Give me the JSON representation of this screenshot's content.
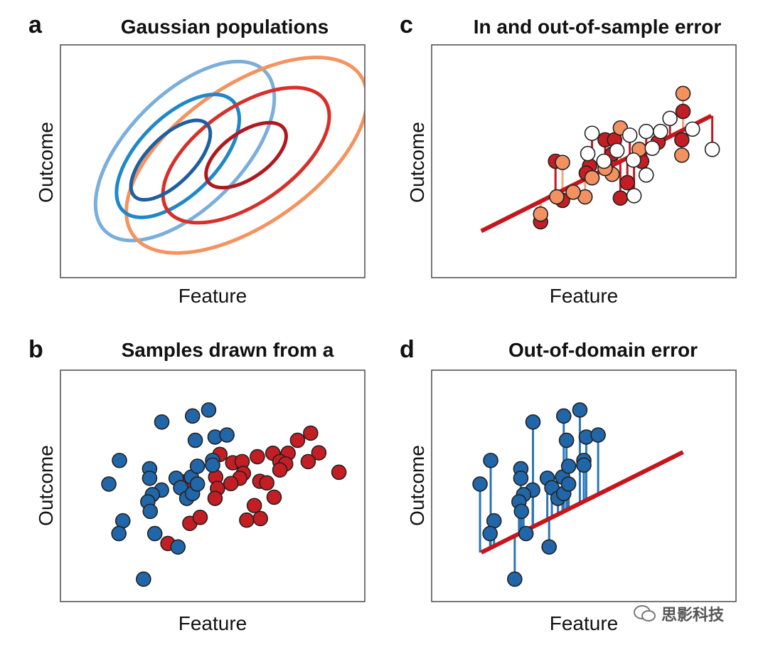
{
  "panels": [
    {
      "letter": "a",
      "title": "Gaussian populations",
      "xlabel": "Feature",
      "ylabel": "Outcome"
    },
    {
      "letter": "b",
      "title": "Samples drawn from a",
      "xlabel": "Feature",
      "ylabel": "Outcome"
    },
    {
      "letter": "c",
      "title": "In and out-of-sample error",
      "xlabel": "Feature",
      "ylabel": "Outcome"
    },
    {
      "letter": "d",
      "title": "Out-of-domain error",
      "xlabel": "Feature",
      "ylabel": "Outcome"
    }
  ],
  "watermark": "思影科技",
  "colors": {
    "blue_point": "#2166a8",
    "red_point": "#c41e24",
    "orange_point": "#f39161",
    "white_point": "#ffffff",
    "fit_line": "#c4161c",
    "stem_blue": "#2a76b8",
    "stem_orange": "#f5a57b",
    "stem_red": "#c4161c"
  },
  "chart_data": [
    {
      "panel": "a",
      "type": "contour",
      "title": "Gaussian populations",
      "xlabel": "Feature",
      "ylabel": "Outcome",
      "xlim": [
        0,
        100
      ],
      "ylim": [
        0,
        100
      ],
      "contours": [
        {
          "population": "blue",
          "level": 3,
          "color": "#7aaedc",
          "center": [
            40.9,
            54.4
          ],
          "major": 37.1,
          "minor": 18.7,
          "angle_deg": 45
        },
        {
          "population": "orange",
          "level": 3,
          "color": "#f4935f",
          "center": [
            61.2,
            52.6
          ],
          "major": 45.6,
          "minor": 22.7,
          "angle_deg": 35
        },
        {
          "population": "blue",
          "level": 2,
          "color": "#1f88c8",
          "center": [
            38.6,
            52.3
          ],
          "major": 25.5,
          "minor": 12.8,
          "angle_deg": 45
        },
        {
          "population": "red",
          "level": 2,
          "color": "#d7302a",
          "center": [
            61.0,
            52.6
          ],
          "major": 31.5,
          "minor": 15.7,
          "angle_deg": 35
        },
        {
          "population": "blue",
          "level": 1,
          "color": "#1f5fa0",
          "center": [
            36.2,
            50.5
          ],
          "major": 16.8,
          "minor": 7.6,
          "angle_deg": 45
        },
        {
          "population": "red",
          "level": 1,
          "color": "#b01820",
          "center": [
            61.0,
            52.6
          ],
          "major": 15.2,
          "minor": 7.5,
          "angle_deg": 35
        }
      ]
    },
    {
      "panel": "b",
      "type": "scatter",
      "title": "Samples drawn from a",
      "xlabel": "Feature",
      "ylabel": "Outcome",
      "xlim": [
        0,
        100
      ],
      "ylim": [
        0,
        100
      ],
      "series": [
        {
          "name": "red",
          "color": "#c41e24",
          "points": [
            [
              52.4,
              63.6
            ],
            [
              56.6,
              60.0
            ],
            [
              59.7,
              60.5
            ],
            [
              60.1,
              55.4
            ],
            [
              58.9,
              53.3
            ],
            [
              56.0,
              51.0
            ],
            [
              51.0,
              53.8
            ],
            [
              51.6,
              48.9
            ],
            [
              50.8,
              44.6
            ],
            [
              64.7,
              62.6
            ],
            [
              69.8,
              64.1
            ],
            [
              74.8,
              64.1
            ],
            [
              72.1,
              60.5
            ],
            [
              74.0,
              59.5
            ],
            [
              72.1,
              56.9
            ],
            [
              77.9,
              69.7
            ],
            [
              82.2,
              72.8
            ],
            [
              84.9,
              64.3
            ],
            [
              81.4,
              60.5
            ],
            [
              91.5,
              55.9
            ],
            [
              65.5,
              52.0
            ],
            [
              67.8,
              51.3
            ],
            [
              70.2,
              45.1
            ],
            [
              63.7,
              41.5
            ],
            [
              61.2,
              35.2
            ],
            [
              65.7,
              35.9
            ],
            [
              42.5,
              33.8
            ],
            [
              45.9,
              36.4
            ],
            [
              35.3,
              25.1
            ],
            [
              41.1,
              51.8
            ]
          ]
        },
        {
          "name": "blue",
          "color": "#2166a8",
          "points": [
            [
              19.4,
              61.0
            ],
            [
              15.9,
              50.8
            ],
            [
              33.3,
              77.6
            ],
            [
              43.4,
              80.2
            ],
            [
              48.7,
              82.8
            ],
            [
              44.3,
              69.7
            ],
            [
              50.8,
              71.1
            ],
            [
              54.7,
              72.0
            ],
            [
              29.3,
              57.4
            ],
            [
              29.3,
              53.3
            ],
            [
              38.0,
              53.3
            ],
            [
              33.2,
              48.2
            ],
            [
              30.2,
              46.2
            ],
            [
              28.7,
              43.1
            ],
            [
              29.5,
              39.0
            ],
            [
              20.5,
              34.9
            ],
            [
              19.2,
              29.4
            ],
            [
              31.0,
              29.4
            ],
            [
              38.6,
              23.6
            ],
            [
              27.3,
              9.7
            ],
            [
              39.5,
              49.2
            ],
            [
              41.5,
              44.6
            ],
            [
              43.4,
              46.7
            ],
            [
              43.0,
              53.8
            ],
            [
              45.0,
              58.5
            ],
            [
              45.0,
              50.8
            ],
            [
              50.0,
              61.0
            ],
            [
              50.0,
              59.0
            ]
          ]
        }
      ]
    },
    {
      "panel": "c",
      "type": "scatter",
      "title": "In and out-of-sample error",
      "xlabel": "Feature",
      "ylabel": "Outcome",
      "xlim": [
        0,
        100
      ],
      "ylim": [
        0,
        100
      ],
      "fit_line": {
        "x": [
          16.3,
          91.9
        ],
        "y": [
          20.0,
          69.5
        ]
      },
      "series": [
        {
          "name": "red",
          "color": "#c41e24",
          "points": [
            [
              82.6,
              71.4
            ],
            [
              82.2,
              59.2
            ],
            [
              40.7,
              50.0
            ],
            [
              57.0,
              59.2
            ],
            [
              60.1,
              59.2
            ],
            [
              51.9,
              48.0
            ],
            [
              50.8,
              44.9
            ],
            [
              43.0,
              33.2
            ],
            [
              64.3,
              40.8
            ],
            [
              62.0,
              34.2
            ],
            [
              69.0,
              50.0
            ],
            [
              59.3,
              53.1
            ],
            [
              74.4,
              58.2
            ],
            [
              35.8,
              24.0
            ]
          ]
        },
        {
          "name": "orange",
          "color": "#f39161",
          "points": [
            [
              82.6,
              79.1
            ],
            [
              82.2,
              52.6
            ],
            [
              43.0,
              49.5
            ],
            [
              62.0,
              64.3
            ],
            [
              68.2,
              55.1
            ],
            [
              59.3,
              44.4
            ],
            [
              50.4,
              34.7
            ],
            [
              46.5,
              36.7
            ],
            [
              41.1,
              34.7
            ],
            [
              35.8,
              27.3
            ],
            [
              52.7,
              42.9
            ],
            [
              57.0,
              46.9
            ]
          ]
        },
        {
          "name": "white",
          "color": "#ffffff",
          "points": [
            [
              52.7,
              62.0
            ],
            [
              51.3,
              53.3
            ],
            [
              56.6,
              50.0
            ],
            [
              60.9,
              54.6
            ],
            [
              65.1,
              61.2
            ],
            [
              66.3,
              50.5
            ],
            [
              70.5,
              62.8
            ],
            [
              75.2,
              62.8
            ],
            [
              78.3,
              68.4
            ],
            [
              85.7,
              63.8
            ],
            [
              92.2,
              55.1
            ],
            [
              72.5,
              55.6
            ],
            [
              70.5,
              44.1
            ],
            [
              66.5,
              35.2
            ]
          ]
        }
      ]
    },
    {
      "panel": "d",
      "type": "scatter",
      "title": "Out-of-domain error",
      "xlabel": "Feature",
      "ylabel": "Outcome",
      "xlim": [
        0,
        100
      ],
      "ylim": [
        0,
        100
      ],
      "fit_line": {
        "x": [
          16.3,
          82.6
        ],
        "y": [
          21.2,
          64.6
        ]
      },
      "series": [
        {
          "name": "blue",
          "color": "#2166a8",
          "points": [
            [
              19.4,
              61.0
            ],
            [
              15.9,
              50.8
            ],
            [
              33.3,
              77.6
            ],
            [
              43.4,
              80.2
            ],
            [
              48.7,
              82.8
            ],
            [
              44.3,
              69.7
            ],
            [
              50.8,
              71.1
            ],
            [
              54.7,
              72.0
            ],
            [
              29.3,
              57.4
            ],
            [
              29.3,
              53.3
            ],
            [
              38.0,
              53.3
            ],
            [
              33.2,
              48.2
            ],
            [
              30.2,
              46.2
            ],
            [
              28.7,
              43.1
            ],
            [
              29.5,
              39.0
            ],
            [
              20.5,
              34.9
            ],
            [
              19.2,
              29.4
            ],
            [
              31.0,
              29.4
            ],
            [
              38.6,
              23.6
            ],
            [
              27.3,
              9.7
            ],
            [
              39.5,
              49.2
            ],
            [
              41.5,
              44.6
            ],
            [
              43.4,
              46.7
            ],
            [
              43.0,
              53.8
            ],
            [
              45.0,
              58.5
            ],
            [
              45.0,
              50.8
            ],
            [
              50.0,
              61.0
            ],
            [
              50.0,
              59.0
            ]
          ]
        }
      ]
    }
  ]
}
